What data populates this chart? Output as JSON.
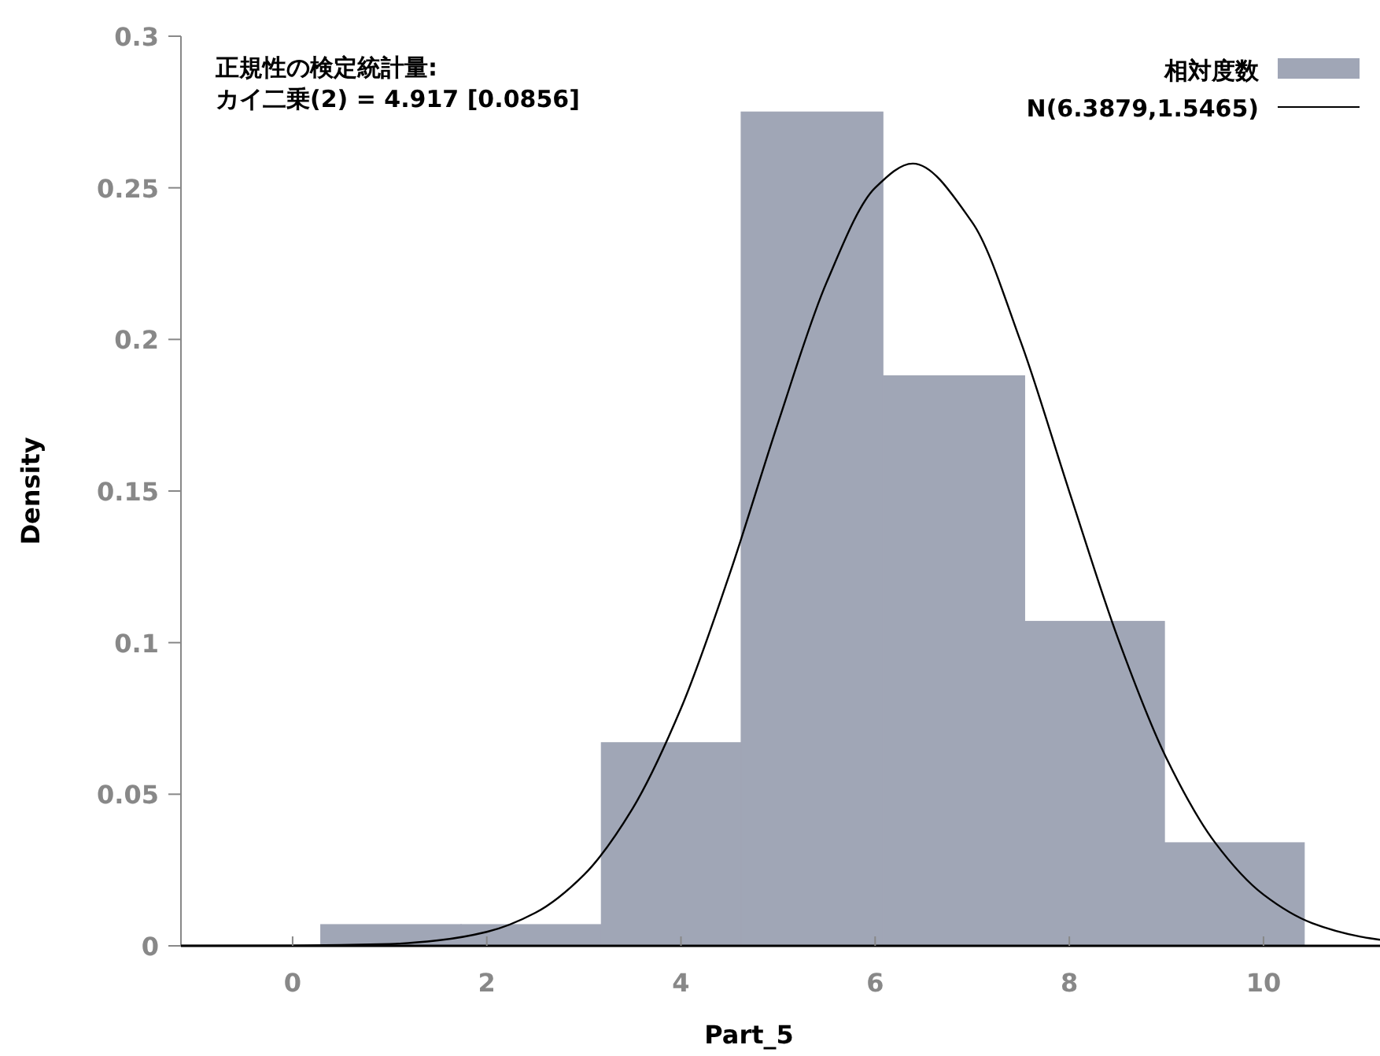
{
  "chart_data": {
    "type": "histogram",
    "xlabel": "Part_5",
    "ylabel": "Density",
    "annotations": [
      "正規性の検定統計量:",
      "カイ二乗(2) = 4.917 [0.0856]"
    ],
    "xlim": [
      -1.15,
      11.2
    ],
    "xticks": [
      0,
      2,
      4,
      6,
      8,
      10
    ],
    "ylim": [
      0,
      0.3
    ],
    "yticks": [
      0,
      0.05,
      0.1,
      0.15,
      0.2,
      0.25,
      0.3
    ],
    "legend": "top right",
    "series": [
      {
        "name": "相対度数",
        "color": "#a0a6b6",
        "bins": [
          0.29,
          1.735,
          3.18,
          4.62,
          6.08,
          7.54,
          8.98,
          10.42
        ],
        "values": [
          0.007,
          0.007,
          0.067,
          0.275,
          0.188,
          0.107,
          0.034
        ]
      },
      {
        "name": "N(6.3879,1.5465)",
        "type": "line",
        "color": "#000000",
        "x": [
          -1.15,
          0,
          1,
          1.5,
          2,
          2.5,
          3,
          3.5,
          4,
          4.5,
          5,
          5.5,
          6,
          6.3879,
          7,
          7.5,
          8,
          8.5,
          9,
          9.5,
          10,
          10.5,
          11,
          11.2
        ],
        "values": [
          0,
          0.0001,
          0.0006,
          0.0018,
          0.0046,
          0.0109,
          0.0234,
          0.0452,
          0.0783,
          0.1225,
          0.1725,
          0.2188,
          0.25,
          0.258,
          0.2386,
          0.1992,
          0.1498,
          0.1015,
          0.0619,
          0.0341,
          0.0169,
          0.0075,
          0.003,
          0.002
        ]
      }
    ]
  }
}
